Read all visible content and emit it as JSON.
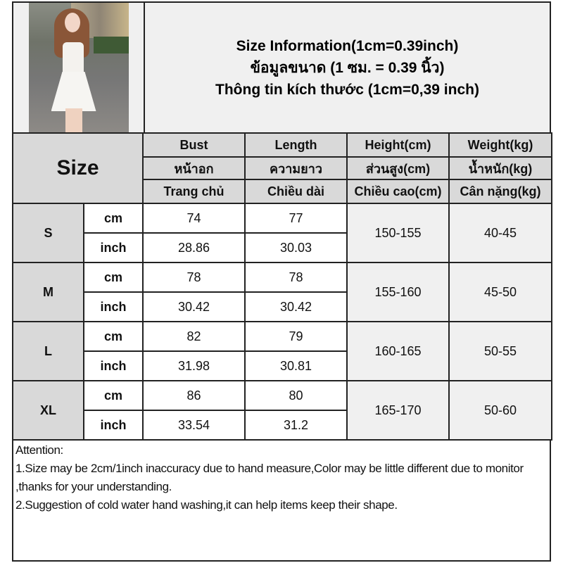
{
  "title": {
    "line1": "Size Information(1cm=0.39inch)",
    "line2": "ข้อมูลขนาด (1 ซม. = 0.39 นิ้ว)",
    "line3": "Thông tin kích thước (1cm=0,39 inch)"
  },
  "header": {
    "size_label": "Size",
    "columns": [
      {
        "en": "Bust",
        "th": "หน้าอก",
        "vi": "Trang chủ"
      },
      {
        "en": "Length",
        "th": "ความยาว",
        "vi": "Chiều dài"
      },
      {
        "en": "Height(cm)",
        "th": "ส่วนสูง(cm)",
        "vi": "Chiều cao(cm)"
      },
      {
        "en": "Weight(kg)",
        "th": "น้ำหนัก(kg)",
        "vi": "Cân nặng(kg)"
      }
    ]
  },
  "rows": [
    {
      "size": "S",
      "cm_label": "cm",
      "inch_label": "inch",
      "bust_cm": "74",
      "length_cm": "77",
      "bust_inch": "28.86",
      "length_inch": "30.03",
      "height": "150-155",
      "weight": "40-45"
    },
    {
      "size": "M",
      "cm_label": "cm",
      "inch_label": "inch",
      "bust_cm": "78",
      "length_cm": "78",
      "bust_inch": "30.42",
      "length_inch": "30.42",
      "height": "155-160",
      "weight": "45-50"
    },
    {
      "size": "L",
      "cm_label": "cm",
      "inch_label": "inch",
      "bust_cm": "82",
      "length_cm": "79",
      "bust_inch": "31.98",
      "length_inch": "30.81",
      "height": "160-165",
      "weight": "50-55"
    },
    {
      "size": "XL",
      "cm_label": "cm",
      "inch_label": "inch",
      "bust_cm": "86",
      "length_cm": "80",
      "bust_inch": "33.54",
      "length_inch": "31.2",
      "height": "165-170",
      "weight": "50-60"
    }
  ],
  "attention": {
    "heading": "Attention:",
    "note1": "1.Size may be 2cm/1inch inaccuracy due to hand measure,Color may be little different due to monitor ,thanks for your understanding.",
    "note2": "2.Suggestion of cold water hand washing,it can help items keep their shape."
  }
}
